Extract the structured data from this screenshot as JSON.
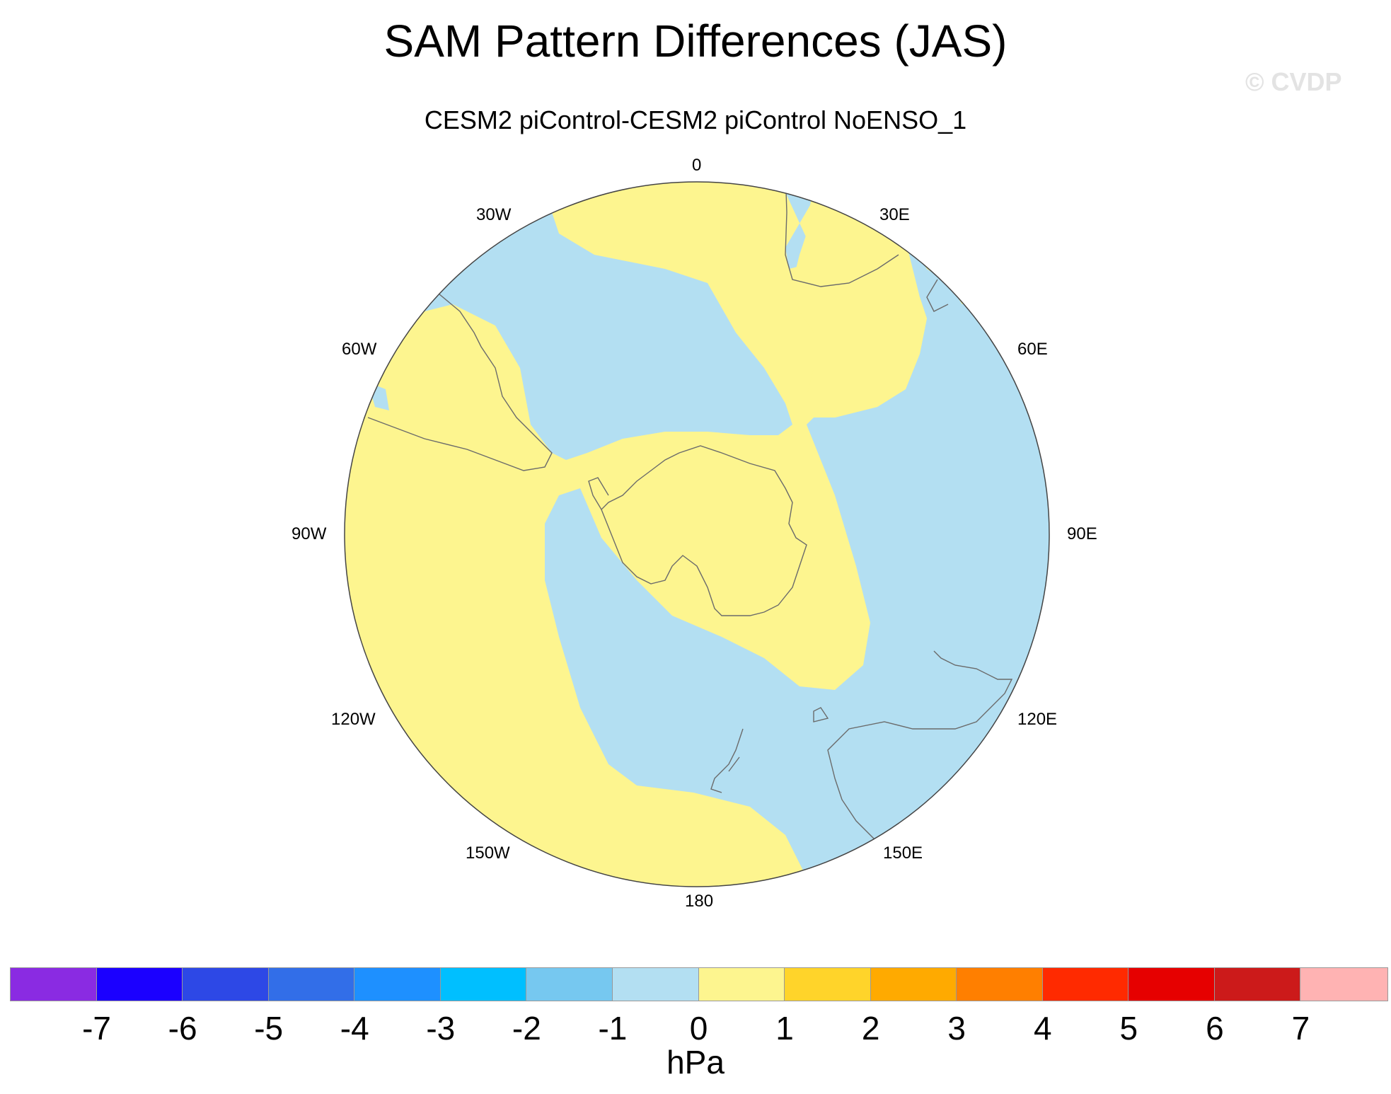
{
  "title": "SAM Pattern Differences (JAS)",
  "watermark": "© CVDP",
  "subtitle": "CESM2 piControl-CESM2 piControl NoENSO_1",
  "map": {
    "projection": "south polar stereographic",
    "longitude_labels": [
      "0",
      "30E",
      "60E",
      "90E",
      "120E",
      "150E",
      "180",
      "150W",
      "120W",
      "90W",
      "60W",
      "30W"
    ],
    "fill_colors": {
      "negative_0_to_-1": "#b3dff2",
      "positive_0_to_1": "#fdf58f"
    },
    "coastline_color": "#6b6b6b"
  },
  "colorbar": {
    "units": "hPa",
    "tick_labels": [
      "-7",
      "-6",
      "-5",
      "-4",
      "-3",
      "-2",
      "-1",
      "0",
      "1",
      "2",
      "3",
      "4",
      "5",
      "6",
      "7"
    ],
    "colors": [
      "#8a2be2",
      "#1b00ff",
      "#2d48e6",
      "#326ee8",
      "#1e90ff",
      "#00bfff",
      "#76c8f0",
      "#b3dff2",
      "#fdf58f",
      "#ffd42a",
      "#ffaa00",
      "#ff7f00",
      "#ff2a00",
      "#e60000",
      "#cc1a1a",
      "#ffb3b3"
    ]
  }
}
